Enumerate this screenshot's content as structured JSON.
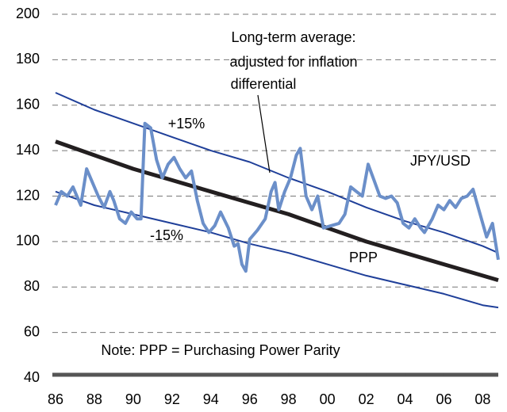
{
  "chart_data": {
    "type": "line",
    "annotations": {
      "average": [
        "Long-term average:",
        "adjusted for inflation",
        "differential"
      ],
      "upper": "+15%",
      "lower": "-15%",
      "jpy": "JPY/USD",
      "ppp": "PPP",
      "note": "Note: PPP = Purchasing Power Parity"
    },
    "xlim": [
      1986,
      2008.8
    ],
    "xticks": [
      {
        "value": 1986,
        "label": "86"
      },
      {
        "value": 1988,
        "label": "88"
      },
      {
        "value": 1990,
        "label": "90"
      },
      {
        "value": 1992,
        "label": "92"
      },
      {
        "value": 1994,
        "label": "94"
      },
      {
        "value": 1996,
        "label": "96"
      },
      {
        "value": 1998,
        "label": "98"
      },
      {
        "value": 2000,
        "label": "00"
      },
      {
        "value": 2002,
        "label": "02"
      },
      {
        "value": 2004,
        "label": "04"
      },
      {
        "value": 2006,
        "label": "06"
      },
      {
        "value": 2008,
        "label": "08"
      }
    ],
    "ylim": [
      40,
      200
    ],
    "yticks": [
      40,
      60,
      80,
      100,
      120,
      140,
      160,
      180,
      200
    ],
    "grid": true,
    "series": [
      {
        "name": "+15%",
        "color": "#1f3f99",
        "width": 2,
        "x": [
          1986,
          1988,
          1990,
          1992,
          1994,
          1996,
          1998,
          2000,
          2002,
          2004,
          2006,
          2008,
          2008.8
        ],
        "values": [
          165.5,
          158,
          152,
          146,
          140,
          135,
          128,
          122,
          115,
          109,
          104,
          98,
          95
        ]
      },
      {
        "name": "-15%",
        "color": "#1f3f99",
        "width": 2,
        "x": [
          1986,
          1988,
          1990,
          1992,
          1994,
          1996,
          1998,
          2000,
          2002,
          2004,
          2006,
          2008,
          2008.8
        ],
        "values": [
          122,
          116,
          112,
          108,
          104,
          99,
          95,
          90,
          85,
          81,
          77,
          72,
          71
        ]
      },
      {
        "name": "PPP",
        "color": "#231f20",
        "width": 5,
        "x": [
          1986,
          1988,
          1990,
          1992,
          1994,
          1996,
          1998,
          2000,
          2002,
          2004,
          2006,
          2008,
          2008.8
        ],
        "values": [
          144,
          138,
          132,
          127,
          122,
          117,
          112,
          106,
          100,
          95,
          90,
          85,
          83
        ]
      },
      {
        "name": "JPY/USD",
        "color": "#6b8fc9",
        "width": 4,
        "x": [
          1986.0,
          1986.3,
          1986.6,
          1986.9,
          1987.3,
          1987.6,
          1987.9,
          1988.2,
          1988.5,
          1988.8,
          1989.0,
          1989.3,
          1989.6,
          1989.9,
          1990.2,
          1990.4,
          1990.6,
          1990.9,
          1991.2,
          1991.5,
          1991.8,
          1992.1,
          1992.4,
          1992.7,
          1993.0,
          1993.3,
          1993.6,
          1993.9,
          1994.2,
          1994.5,
          1994.9,
          1995.2,
          1995.4,
          1995.6,
          1995.8,
          1996.0,
          1996.4,
          1996.8,
          1997.1,
          1997.3,
          1997.5,
          1997.8,
          1998.1,
          1998.4,
          1998.6,
          1998.9,
          1999.2,
          1999.5,
          1999.8,
          2000.2,
          2000.6,
          2000.9,
          2001.2,
          2001.5,
          2001.8,
          2002.1,
          2002.4,
          2002.7,
          2003.0,
          2003.3,
          2003.6,
          2003.9,
          2004.2,
          2004.5,
          2004.8,
          2005.0,
          2005.4,
          2005.7,
          2006.0,
          2006.3,
          2006.6,
          2006.9,
          2007.2,
          2007.5,
          2007.8,
          2008.0,
          2008.2,
          2008.5,
          2008.8
        ],
        "values": [
          116,
          122,
          120,
          124,
          116,
          132,
          126,
          120,
          115,
          122,
          118,
          110,
          108,
          113,
          110,
          110,
          152,
          150,
          136,
          128,
          134,
          137,
          132,
          128,
          131,
          118,
          108,
          104,
          107,
          113,
          106,
          98,
          99,
          90,
          87,
          101,
          105,
          110,
          122,
          126,
          114,
          122,
          128,
          138,
          141,
          120,
          114,
          120,
          106,
          107,
          108,
          112,
          124,
          122,
          120,
          134,
          127,
          120,
          119,
          120,
          117,
          108,
          106,
          110,
          106,
          104,
          110,
          116,
          114,
          118,
          115,
          119,
          120,
          123,
          114,
          108,
          102,
          108,
          92
        ]
      }
    ]
  }
}
